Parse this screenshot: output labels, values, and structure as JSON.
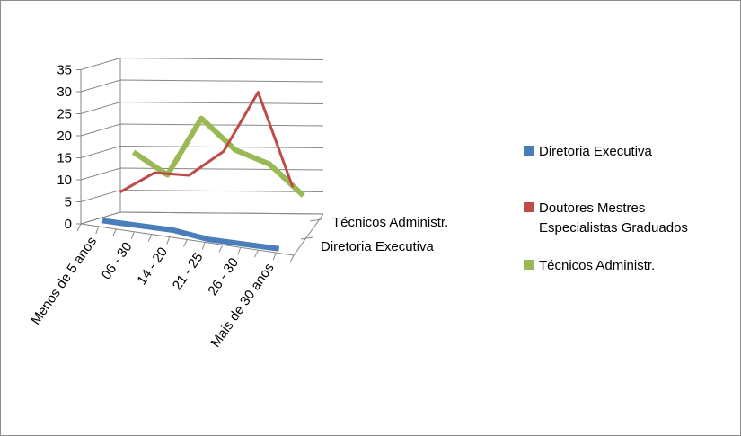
{
  "chart_data": {
    "type": "line",
    "categories": [
      "Menos de 5 anos",
      "06 - 30",
      "14 - 20",
      "21 - 25",
      "26 - 30",
      "Mais de 30 anos"
    ],
    "series": [
      {
        "name": "Diretoria Executiva",
        "values": [
          1,
          1,
          1,
          0,
          0,
          0
        ],
        "color": "#4a7ebb"
      },
      {
        "name": "Doutores Mestres Especialistas Graduados",
        "values": [
          6,
          11,
          11,
          17,
          31,
          10
        ],
        "color": "#be4b48"
      },
      {
        "name": "Técnicos Administr.",
        "values": [
          14,
          9,
          22,
          15,
          12,
          5
        ],
        "color": "#98b954"
      }
    ],
    "depth_labels": [
      "Técnicos Administr.",
      "Diretoria Executiva"
    ],
    "ylim": [
      0,
      35
    ],
    "yticks": [
      0,
      5,
      10,
      15,
      20,
      25,
      30,
      35
    ],
    "grid": true,
    "legend_position": "right"
  }
}
